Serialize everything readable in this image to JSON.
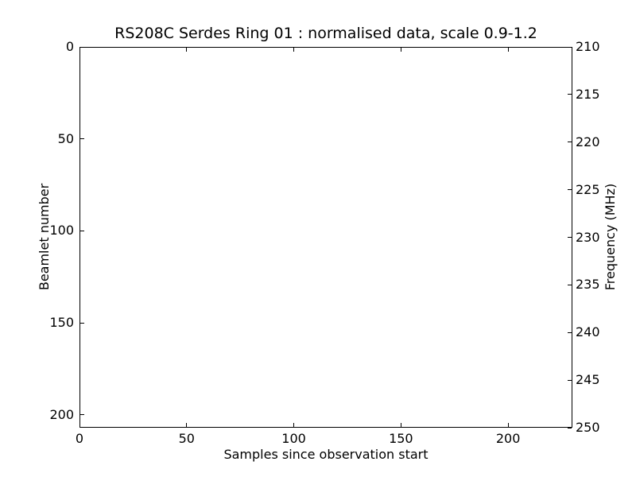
{
  "figure": {
    "background": "#ffffff",
    "frame_color": "#000000",
    "text_color": "#000000"
  },
  "chart_data": {
    "type": "heatmap",
    "title": "RS208C Serdes Ring 01 : normalised data, scale 0.9-1.2",
    "xlabel": "Samples since observation start",
    "ylabel_left": "Beamlet number",
    "ylabel_right": "Frequency (MHz)",
    "xlim": [
      0,
      230
    ],
    "xticks": [
      0,
      50,
      100,
      150,
      200
    ],
    "ylim_left": [
      0,
      207
    ],
    "y_left_inverted": true,
    "yticks_left": [
      0,
      50,
      100,
      150,
      200
    ],
    "ylim_right": [
      210,
      250
    ],
    "yticks_right": [
      210,
      215,
      220,
      225,
      230,
      235,
      240,
      245,
      250
    ],
    "grid": false,
    "legend": null,
    "values": [],
    "plot_area_content": "blank"
  }
}
